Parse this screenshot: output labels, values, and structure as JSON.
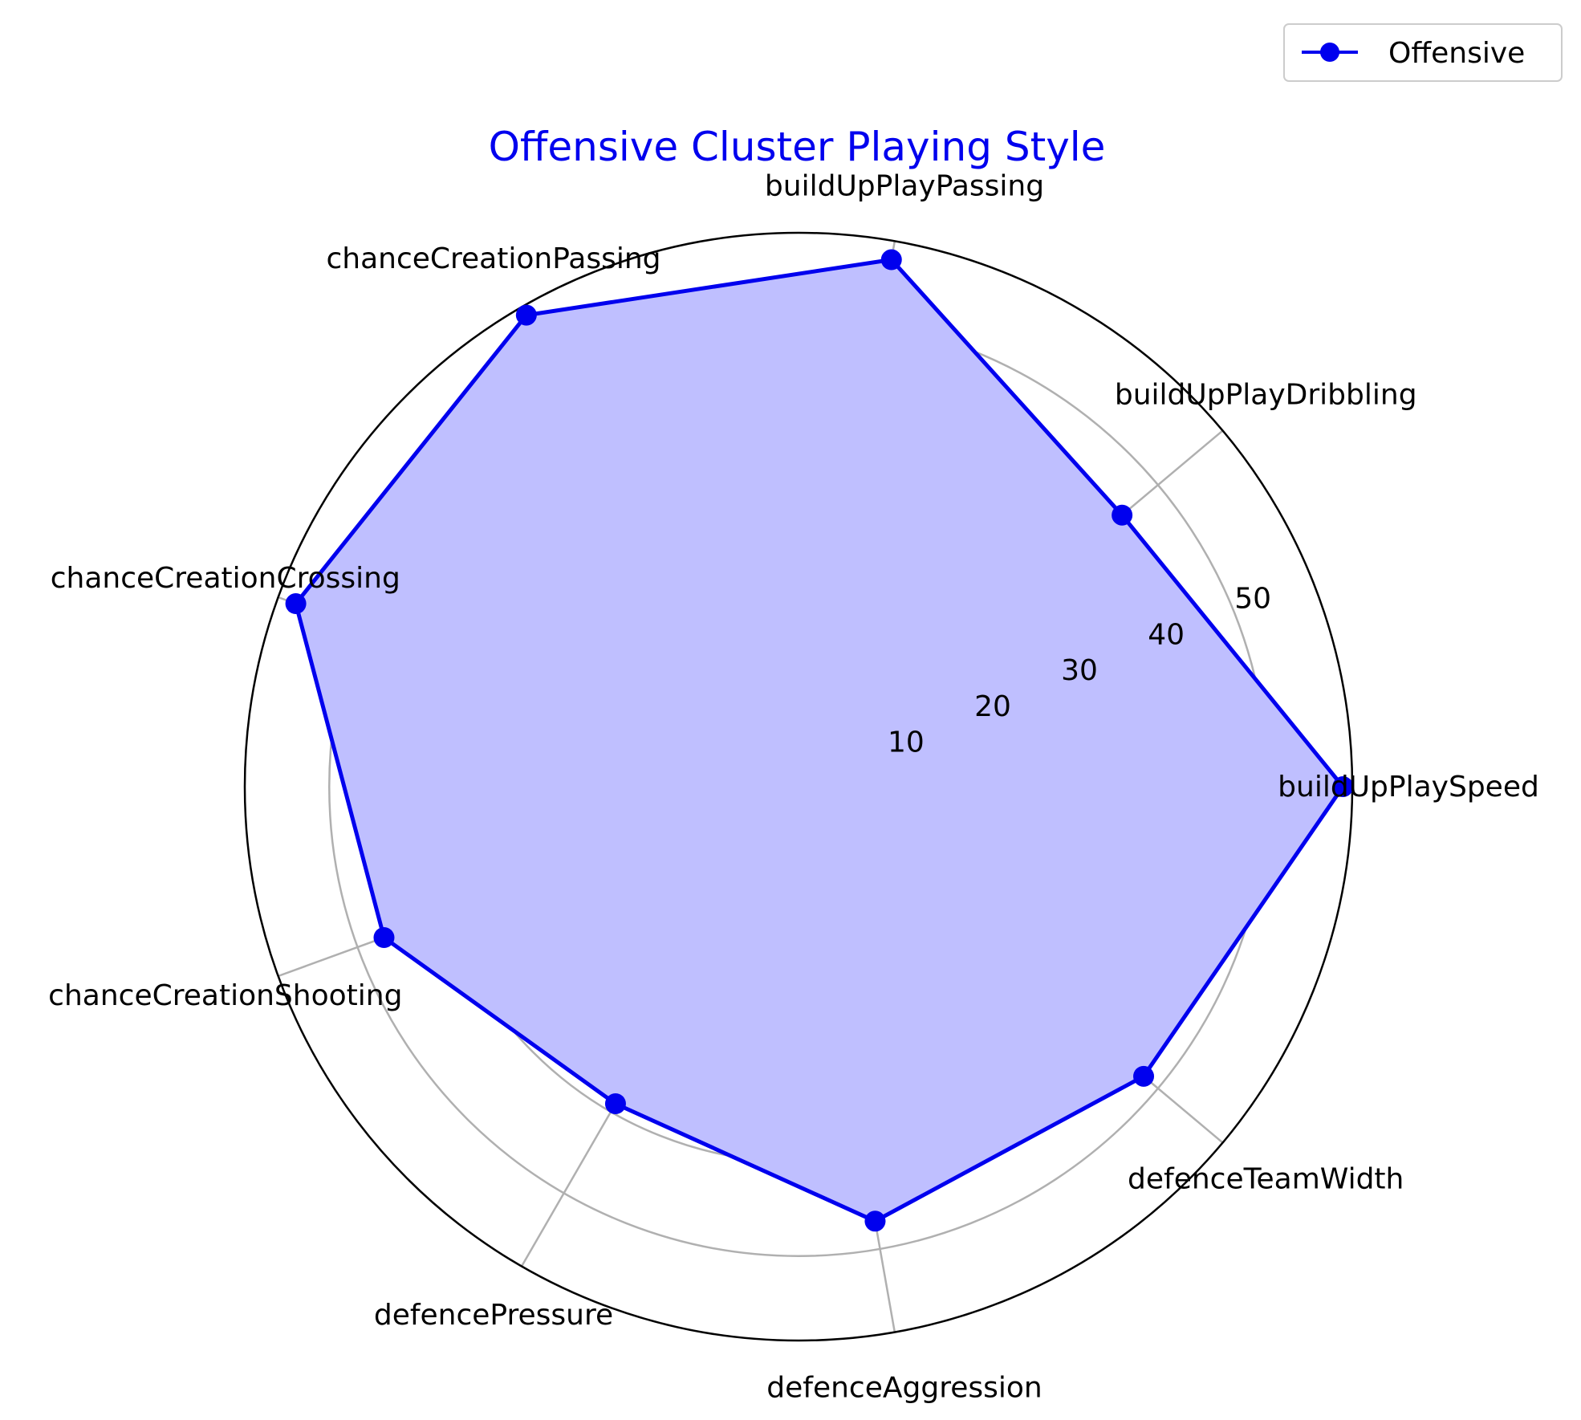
{
  "chart_data": {
    "type": "radar",
    "title": "Offensive Cluster Playing Style",
    "title_color": "#0000ee",
    "categories": [
      "buildUpPlaySpeed",
      "buildUpPlayDribbling",
      "buildUpPlayPassing",
      "chanceCreationPassing",
      "chanceCreationCrossing",
      "chanceCreationShooting",
      "defencePressure",
      "defenceAggression",
      "defenceTeamWidth"
    ],
    "series": [
      {
        "name": "Offensive",
        "color": "#0000ee",
        "fill": "#bfbfff",
        "values": [
          58,
          45,
          57,
          58,
          57,
          47,
          39,
          47,
          48
        ]
      }
    ],
    "r_ticks": [
      10,
      20,
      30,
      40,
      50
    ],
    "r_max": 59,
    "grid": true,
    "legend_position": "top-right"
  }
}
